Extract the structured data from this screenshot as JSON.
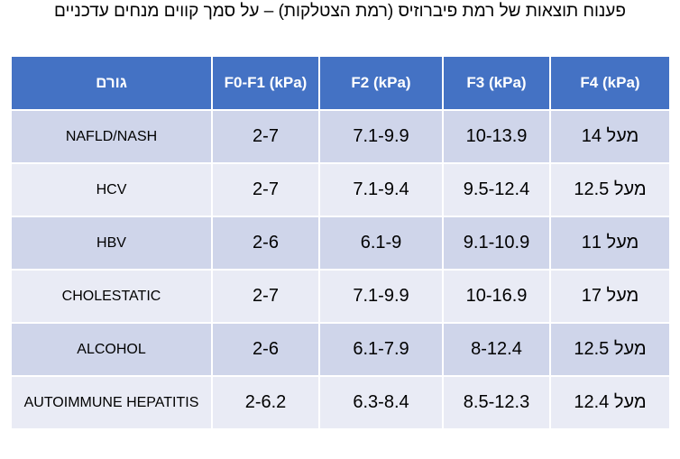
{
  "title": "פענוח תוצאות של רמת פיברוזיס (רמת הצטלקות) – על סמך קווים מנחים עדכניים",
  "table": {
    "headers": {
      "factor": "גורם",
      "f0f1": "F0-F1 (kPa)",
      "f2": "F2 (kPa)",
      "f3": "F3 (kPa)",
      "f4": "F4 (kPa)"
    },
    "rows": [
      {
        "factor": "NAFLD/NASH",
        "f0f1": "2-7",
        "f2": "7.1-9.9",
        "f3": "10-13.9",
        "f4": "מעל 14"
      },
      {
        "factor": "HCV",
        "f0f1": "2-7",
        "f2": "7.1-9.4",
        "f3": "9.5-12.4",
        "f4": "מעל 12.5"
      },
      {
        "factor": "HBV",
        "f0f1": "2-6",
        "f2": "6.1-9",
        "f3": "9.1-10.9",
        "f4": "מעל 11"
      },
      {
        "factor": "CHOLESTATIC",
        "f0f1": "2-7",
        "f2": "7.1-9.9",
        "f3": "10-16.9",
        "f4": "מעל 17"
      },
      {
        "factor": "ALCOHOL",
        "f0f1": "2-6",
        "f2": "6.1-7.9",
        "f3": "8-12.4",
        "f4": "מעל 12.5"
      },
      {
        "factor": "AUTOIMMUNE HEPATITIS",
        "f0f1": "2-6.2",
        "f2": "6.3-8.4",
        "f3": "8.5-12.3",
        "f4": "מעל 12.4"
      }
    ]
  },
  "colors": {
    "header_bg": "#4472c4",
    "row_dark": "#cfd5ea",
    "row_light": "#e9ebf5"
  }
}
